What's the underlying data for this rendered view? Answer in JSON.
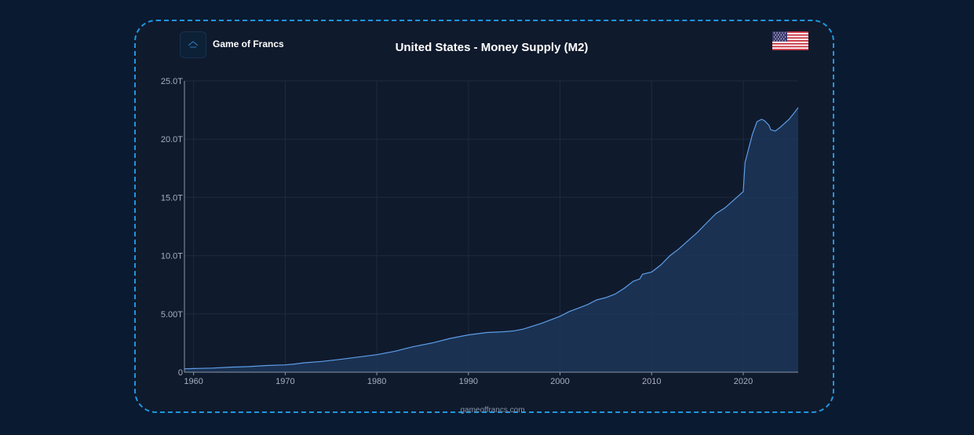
{
  "header": {
    "brand": "Game of Francs",
    "title": "United States - Money Supply (M2)"
  },
  "footer": {
    "url": "gameoffrancs.com"
  },
  "colors": {
    "background": "#0a1a31",
    "card": "#101a2d",
    "border": "#1e97e0",
    "line": "#5d9ee8",
    "area": "#1e3a5f"
  },
  "icons": {
    "logo": "game-of-francs-logo",
    "flag": "us-flag-icon"
  },
  "chart_data": {
    "type": "area",
    "title": "United States - Money Supply (M2)",
    "xlabel": "",
    "ylabel": "",
    "xlim": [
      1959,
      2026
    ],
    "ylim": [
      0,
      25
    ],
    "x_ticks": [
      1960,
      1970,
      1980,
      1990,
      2000,
      2010,
      2020
    ],
    "y_ticks": [
      {
        "value": 0,
        "label": "0"
      },
      {
        "value": 5,
        "label": "5.00T"
      },
      {
        "value": 10,
        "label": "10.0T"
      },
      {
        "value": 15,
        "label": "15.0T"
      },
      {
        "value": 20,
        "label": "20.0T"
      },
      {
        "value": 25,
        "label": "25.0T"
      }
    ],
    "grid": true,
    "legend": "none",
    "series": [
      {
        "x": [
          1959,
          1960,
          1962,
          1964,
          1966,
          1968,
          1970,
          1971,
          1972,
          1974,
          1976,
          1978,
          1980,
          1982,
          1983,
          1984,
          1986,
          1988,
          1990,
          1992,
          1994,
          1995,
          1996,
          1998,
          2000,
          2001,
          2002,
          2003,
          2004,
          2005,
          2006,
          2007,
          2008,
          2008.7,
          2009,
          2010,
          2011,
          2012,
          2013,
          2014,
          2015,
          2016,
          2017,
          2018,
          2019,
          2020,
          2020.2,
          2020.5,
          2021,
          2021.5,
          2022,
          2022.3,
          2022.8,
          2023,
          2023.5,
          2024,
          2025,
          2025.5,
          2026
        ],
        "y": [
          0.29,
          0.31,
          0.35,
          0.43,
          0.48,
          0.57,
          0.63,
          0.7,
          0.8,
          0.92,
          1.1,
          1.3,
          1.5,
          1.8,
          2.0,
          2.2,
          2.5,
          2.9,
          3.2,
          3.4,
          3.48,
          3.55,
          3.7,
          4.2,
          4.8,
          5.2,
          5.5,
          5.8,
          6.2,
          6.4,
          6.7,
          7.2,
          7.8,
          8.0,
          8.4,
          8.6,
          9.2,
          10.0,
          10.6,
          11.3,
          12.0,
          12.8,
          13.6,
          14.1,
          14.8,
          15.5,
          18.0,
          18.9,
          20.4,
          21.5,
          21.7,
          21.6,
          21.2,
          20.8,
          20.7,
          21.0,
          21.7,
          22.2,
          22.7
        ]
      }
    ]
  }
}
